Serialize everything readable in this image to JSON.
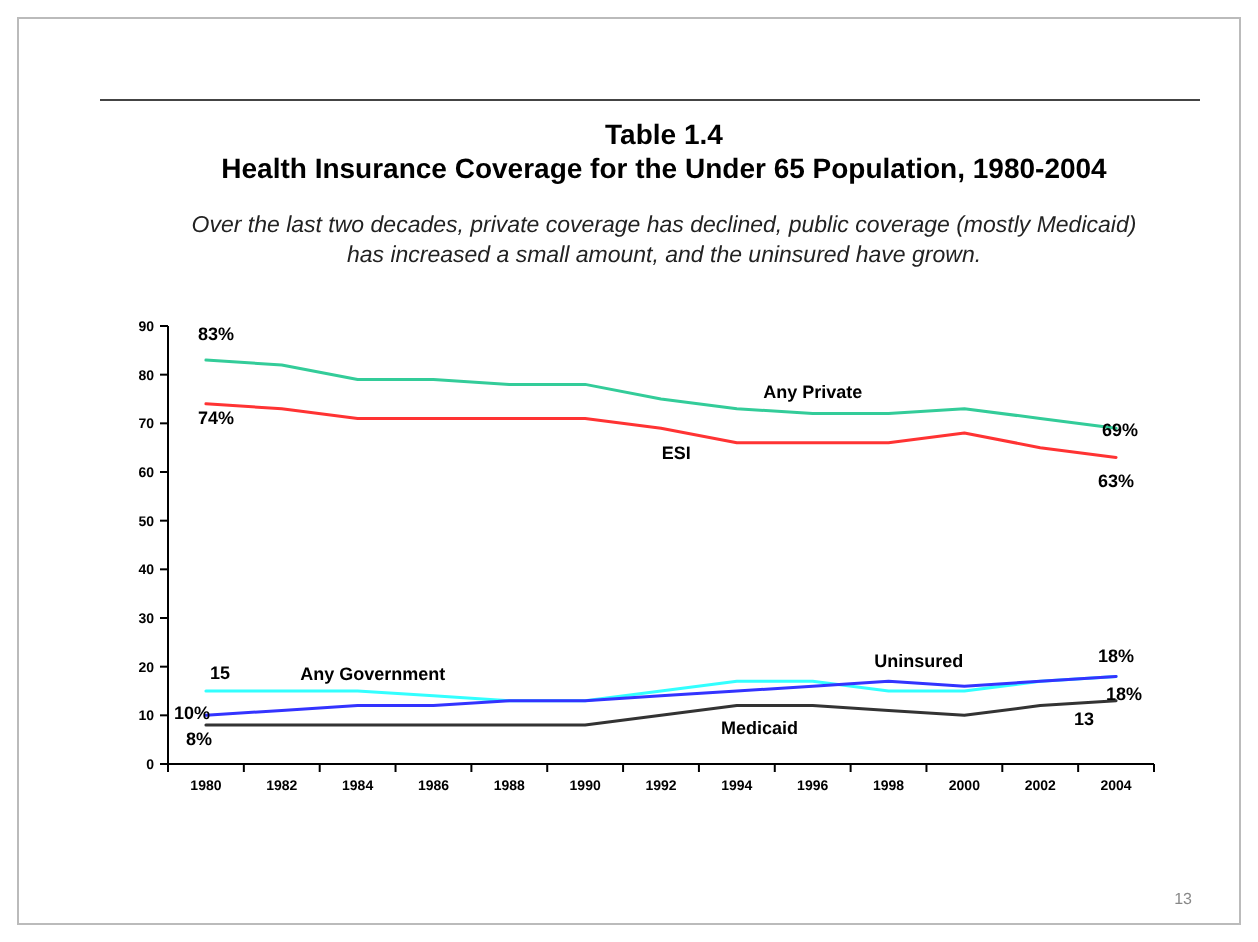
{
  "chart_data": {
    "type": "line",
    "title": "Table 1.4\nHealth Insurance Coverage for the Under 65 Population, 1980-2004",
    "subtitle": "Over the last two decades, private coverage has declined, public coverage (mostly Medicaid)\nhas increased a small amount, and the uninsured have grown.",
    "categories": [
      "1980",
      "1982",
      "1984",
      "1986",
      "1988",
      "1990",
      "1992",
      "1994",
      "1996",
      "1998",
      "2000",
      "2002",
      "2004"
    ],
    "series": [
      {
        "name": "Any Private",
        "color": "#33cc99",
        "values": [
          83,
          82,
          79,
          79,
          78,
          78,
          75,
          73,
          72,
          72,
          73,
          71,
          69
        ],
        "value_labels": [
          "83%",
          null,
          null,
          null,
          null,
          null,
          null,
          null,
          null,
          null,
          null,
          null,
          "69%"
        ]
      },
      {
        "name": "ESI",
        "color": "#ff3333",
        "values": [
          74,
          73,
          71,
          71,
          71,
          71,
          69,
          66,
          66,
          66,
          68,
          65,
          63
        ],
        "value_labels": [
          "74%",
          null,
          null,
          null,
          null,
          null,
          null,
          null,
          null,
          null,
          null,
          null,
          "63%"
        ]
      },
      {
        "name": "Any Government",
        "color": "#33ffff",
        "values": [
          15,
          15,
          15,
          14,
          13,
          13,
          15,
          17,
          17,
          15,
          15,
          17,
          18
        ],
        "value_labels": [
          "15",
          null,
          null,
          null,
          null,
          null,
          null,
          null,
          null,
          null,
          null,
          null,
          "18%"
        ]
      },
      {
        "name": "Uninsured",
        "color": "#3333ff",
        "values": [
          10,
          11,
          12,
          12,
          13,
          13,
          14,
          15,
          16,
          17,
          16,
          17,
          18
        ],
        "value_labels": [
          "10%",
          null,
          null,
          null,
          null,
          null,
          null,
          null,
          null,
          null,
          null,
          null,
          "18%"
        ]
      },
      {
        "name": "Medicaid",
        "color": "#333333",
        "values": [
          8,
          8,
          8,
          8,
          8,
          8,
          10,
          12,
          12,
          11,
          10,
          12,
          13
        ],
        "value_labels": [
          "8%",
          null,
          null,
          null,
          null,
          null,
          null,
          null,
          null,
          null,
          null,
          null,
          "13"
        ]
      }
    ],
    "ylim": [
      0,
      90
    ],
    "yticks": [
      0,
      10,
      20,
      30,
      40,
      50,
      60,
      70,
      80,
      90
    ],
    "grid": false,
    "marker": "none",
    "line_style": "solid",
    "annotations": [
      "13"
    ]
  }
}
